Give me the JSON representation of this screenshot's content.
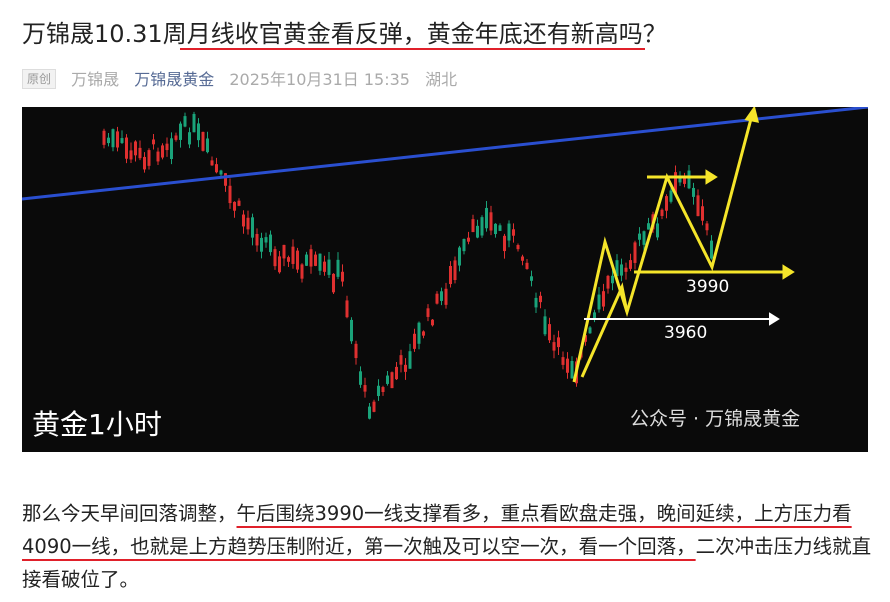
{
  "header": {
    "title": "万锦晟10.31周月线收官黄金看反弹，黄金年底还有新高吗？"
  },
  "meta": {
    "tag": "原创",
    "author": "万锦晟",
    "account": "万锦晟黄金",
    "date": "2025年10月31日 15:35",
    "location": "湖北"
  },
  "image": {
    "caption": "黄金1小时",
    "labels": [
      "3990",
      "3960"
    ],
    "watermark": "公众号 · 万锦晟黄金"
  },
  "body": {
    "segments": [
      "那么今天早间回落调整，",
      "午后围绕3990一线支撑看多，重点看欧盘走强，晚间延续，上方压力看4090一线，也就是上方趋势压制附近，第一次触及可以空一次，看一个回落，",
      "二次冲击压力线就直接看破位了。"
    ]
  }
}
